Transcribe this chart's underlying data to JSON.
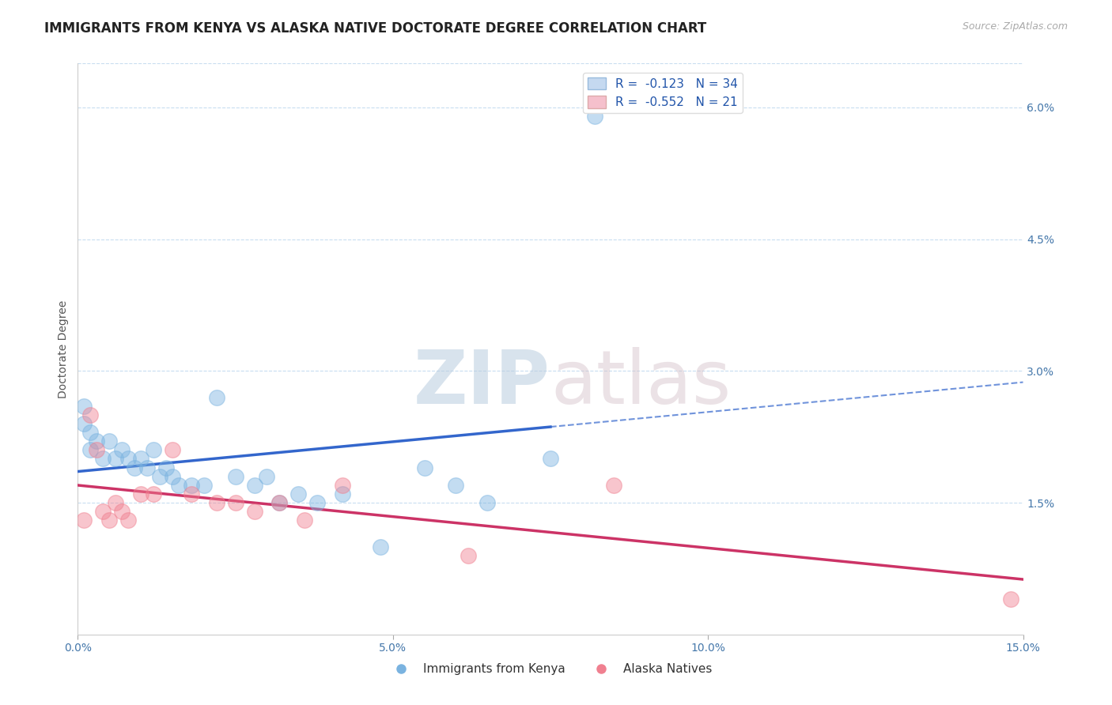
{
  "title": "IMMIGRANTS FROM KENYA VS ALASKA NATIVE DOCTORATE DEGREE CORRELATION CHART",
  "source": "Source: ZipAtlas.com",
  "ylabel": "Doctorate Degree",
  "watermark_zip": "ZIP",
  "watermark_atlas": "atlas",
  "xlim": [
    0.0,
    0.15
  ],
  "ylim": [
    0.0,
    0.065
  ],
  "xticks": [
    0.0,
    0.05,
    0.1,
    0.15
  ],
  "xticklabels": [
    "0.0%",
    "5.0%",
    "10.0%",
    "15.0%"
  ],
  "yticks_right": [
    0.015,
    0.03,
    0.045,
    0.06
  ],
  "yticklabels_right": [
    "1.5%",
    "3.0%",
    "4.5%",
    "6.0%"
  ],
  "legend_kenya_label": "R =  -0.123   N = 34",
  "legend_alaska_label": "R =  -0.552   N = 21",
  "kenya_color": "#7ab3e0",
  "alaska_color": "#f08090",
  "kenya_trend_color": "#3366cc",
  "alaska_trend_color": "#cc3366",
  "kenya_trend_solid_end": 0.075,
  "kenya_x": [
    0.001,
    0.001,
    0.002,
    0.002,
    0.003,
    0.004,
    0.005,
    0.006,
    0.007,
    0.008,
    0.009,
    0.01,
    0.011,
    0.012,
    0.013,
    0.014,
    0.015,
    0.016,
    0.018,
    0.02,
    0.022,
    0.025,
    0.028,
    0.03,
    0.032,
    0.035,
    0.038,
    0.042,
    0.048,
    0.055,
    0.06,
    0.065,
    0.075,
    0.082
  ],
  "kenya_y": [
    0.026,
    0.024,
    0.023,
    0.021,
    0.022,
    0.02,
    0.022,
    0.02,
    0.021,
    0.02,
    0.019,
    0.02,
    0.019,
    0.021,
    0.018,
    0.019,
    0.018,
    0.017,
    0.017,
    0.017,
    0.027,
    0.018,
    0.017,
    0.018,
    0.015,
    0.016,
    0.015,
    0.016,
    0.01,
    0.019,
    0.017,
    0.015,
    0.02,
    0.059
  ],
  "alaska_x": [
    0.001,
    0.002,
    0.003,
    0.004,
    0.005,
    0.006,
    0.007,
    0.008,
    0.01,
    0.012,
    0.015,
    0.018,
    0.022,
    0.025,
    0.028,
    0.032,
    0.036,
    0.042,
    0.062,
    0.085,
    0.148
  ],
  "alaska_y": [
    0.013,
    0.025,
    0.021,
    0.014,
    0.013,
    0.015,
    0.014,
    0.013,
    0.016,
    0.016,
    0.021,
    0.016,
    0.015,
    0.015,
    0.014,
    0.015,
    0.013,
    0.017,
    0.009,
    0.017,
    0.004
  ],
  "dot_size": 200,
  "dot_alpha": 0.45,
  "background_color": "#ffffff",
  "grid_color": "#c8ddf0",
  "title_fontsize": 12,
  "axis_label_fontsize": 10
}
